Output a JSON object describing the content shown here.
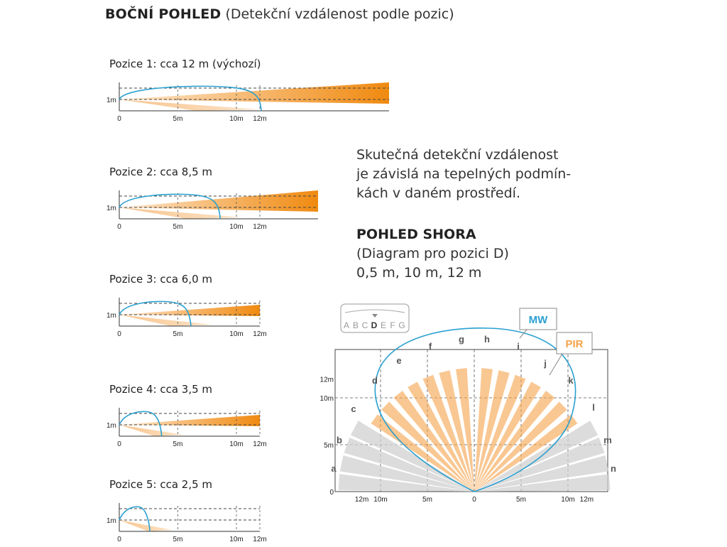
{
  "title": {
    "bold": "BOČNÍ POHLED",
    "rest": "(Detekční vzdálenost podle pozic)"
  },
  "positions": [
    {
      "label": "Pozice 1: cca 12 m (výchozí)",
      "range_m": 12,
      "height_label": "1m",
      "ticks": [
        "0",
        "5m",
        "10m",
        "12m"
      ]
    },
    {
      "label": "Pozice 2: cca 8,5 m",
      "range_m": 8.5,
      "height_label": "1m",
      "ticks": [
        "0",
        "5m",
        "10m",
        "12m"
      ]
    },
    {
      "label": "Pozice 3: cca 6,0 m",
      "range_m": 6.0,
      "height_label": "1m",
      "ticks": [
        "0",
        "5m",
        "10m",
        "12m"
      ]
    },
    {
      "label": "Pozice 4: cca 3,5 m",
      "range_m": 3.5,
      "height_label": "1m",
      "ticks": [
        "0",
        "5m",
        "10m",
        "12m"
      ]
    },
    {
      "label": "Pozice 5: cca 2,5 m",
      "range_m": 2.5,
      "height_label": "1m",
      "ticks": [
        "0",
        "5m",
        "10m",
        "12m"
      ]
    }
  ],
  "note_lines": [
    "Skutečná detekční vzdálenost",
    "je závislá na tepelných podmín-",
    "kách v daném prostředí."
  ],
  "top_view": {
    "heading": "POHLED SHORA",
    "subheading": "(Diagram pro pozici D)",
    "distances": "0,5 m, 10 m, 12 m",
    "selector_letters": [
      "A",
      "B",
      "C",
      "D",
      "E",
      "F",
      "G"
    ],
    "selected_letter": "D",
    "mw_label": "MW",
    "pir_label": "PIR",
    "y_ticks": [
      "12m",
      "10m",
      "5m",
      "0"
    ],
    "x_ticks": [
      "12m",
      "10m",
      "5m",
      "0",
      "5m",
      "10m",
      "12m"
    ],
    "zone_labels": [
      "a",
      "b",
      "c",
      "d",
      "e",
      "f",
      "g",
      "h",
      "i",
      "j",
      "k",
      "l",
      "m",
      "n"
    ]
  },
  "colors": {
    "pir": "#f5a24a",
    "mw": "#2aa0d0",
    "zone_gray": "#d0d0d0",
    "axis": "#333333"
  }
}
